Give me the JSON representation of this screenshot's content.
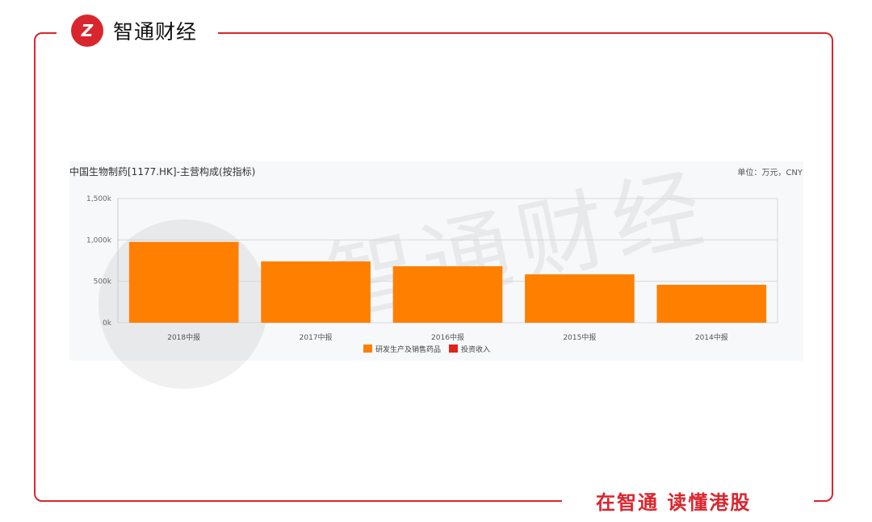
{
  "brand": {
    "name": "智通财经",
    "logo_glyph": "Z",
    "slogan": "在智通 读懂港股",
    "color": "#d9262e"
  },
  "chart_data": {
    "type": "bar",
    "title": "中国生物制药[1177.HK]-主营构成(按指标)",
    "unit": "单位：万元，CNY",
    "categories": [
      "2018中报",
      "2017中报",
      "2016中报",
      "2015中报",
      "2014中报"
    ],
    "series": [
      {
        "name": "研发生产及销售药品",
        "color": "#ff7f00",
        "values": [
          975000,
          740000,
          682000,
          584000,
          458000
        ]
      },
      {
        "name": "投资收入",
        "color": "#e2231a",
        "values": [
          0,
          0,
          0,
          0,
          0
        ]
      }
    ],
    "ylim": [
      0,
      1500000
    ],
    "yticks": [
      {
        "v": 0,
        "label": "0k"
      },
      {
        "v": 500000,
        "label": "500k"
      },
      {
        "v": 1000000,
        "label": "1,000k"
      },
      {
        "v": 1500000,
        "label": "1,500k"
      }
    ],
    "grid": true,
    "legend": "bottom"
  }
}
